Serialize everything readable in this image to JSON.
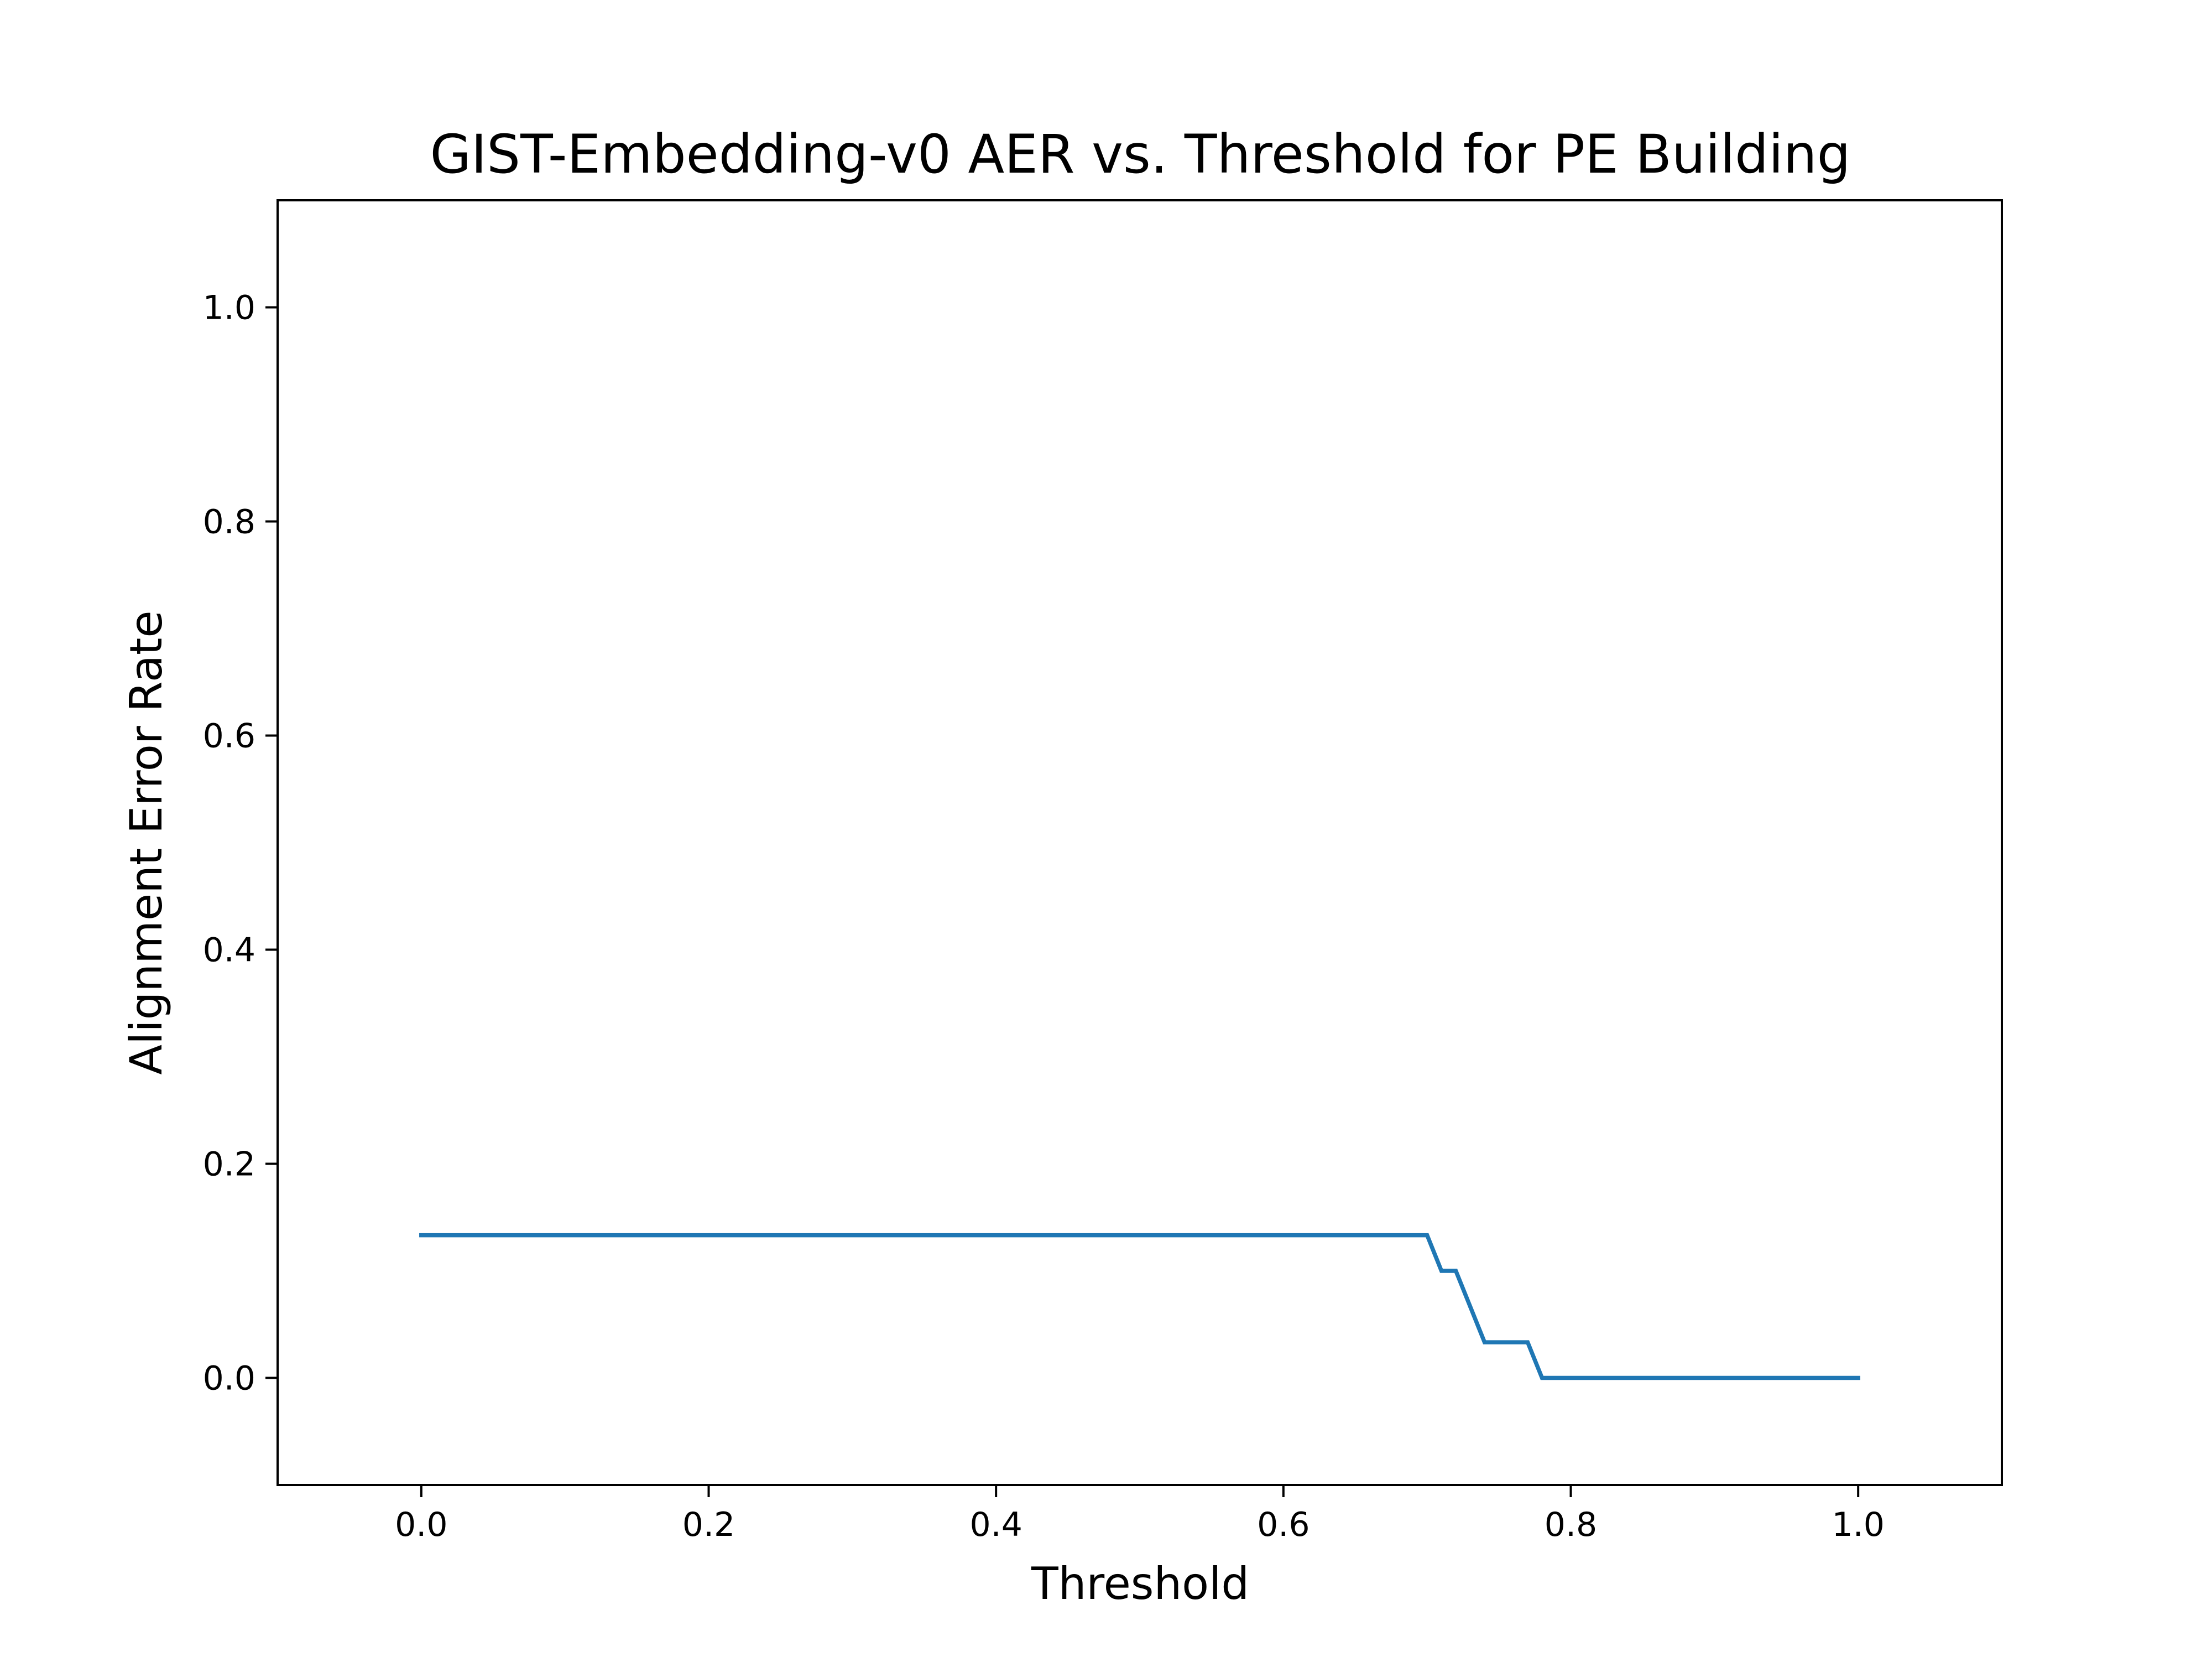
{
  "chart_data": {
    "type": "line",
    "title": "GIST-Embedding-v0 AER vs. Threshold for PE Building",
    "xlabel": "Threshold",
    "ylabel": "Alignment Error Rate",
    "xlim": [
      -0.1,
      1.1
    ],
    "ylim": [
      -0.1,
      1.1
    ],
    "xticks": [
      0.0,
      0.2,
      0.4,
      0.6,
      0.8,
      1.0
    ],
    "xtick_labels": [
      "0.0",
      "0.2",
      "0.4",
      "0.6",
      "0.8",
      "1.0"
    ],
    "yticks": [
      0.0,
      0.2,
      0.4,
      0.6,
      0.8,
      1.0
    ],
    "ytick_labels": [
      "0.0",
      "0.2",
      "0.4",
      "0.6",
      "0.8",
      "1.0"
    ],
    "grid": false,
    "series": [
      {
        "color": "#1f77b4",
        "x": [
          0.0,
          0.7,
          0.71,
          0.72,
          0.74,
          0.77,
          0.78,
          1.0
        ],
        "y": [
          0.1333,
          0.1333,
          0.1,
          0.1,
          0.0333,
          0.0333,
          0.0,
          0.0
        ]
      }
    ]
  }
}
